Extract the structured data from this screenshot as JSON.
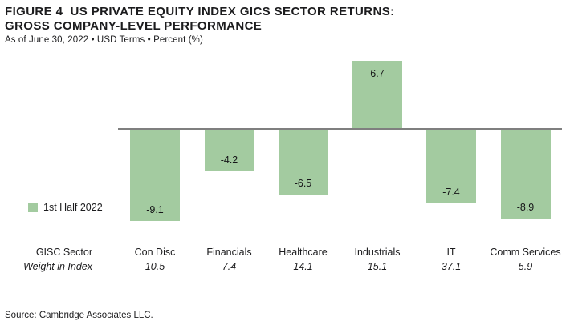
{
  "header": {
    "title_line1": "FIGURE 4  US PRIVATE EQUITY INDEX GICS SECTOR RETURNS:",
    "title_line2": "GROSS COMPANY-LEVEL PERFORMANCE",
    "subtitle": "As of June 30, 2022 • USD Terms • Percent (%)"
  },
  "chart_data": {
    "type": "bar",
    "title": "US Private Equity Index GICS Sector Returns: Gross Company-Level Performance",
    "categories": [
      "Con Disc",
      "Financials",
      "Healthcare",
      "Industrials",
      "IT",
      "Comm Services"
    ],
    "series": [
      {
        "name": "1st Half 2022",
        "values": [
          -9.1,
          -4.2,
          -6.5,
          6.7,
          -7.4,
          -8.9
        ]
      }
    ],
    "weight_in_index": [
      10.5,
      7.4,
      14.1,
      15.1,
      37.1,
      5.9
    ],
    "xlabel": "GISC Sector",
    "ylabel": "Percent (%)",
    "ylim": [
      -10,
      7.5
    ],
    "grid": false,
    "data_labels": true,
    "legend_position": "center-left",
    "bar_color": "#a3cba0"
  },
  "legend": {
    "label": "1st Half 2022"
  },
  "table": {
    "sector_row_label": "GISC Sector",
    "weight_row_label": "Weight in Index"
  },
  "footer": {
    "source": "Source: Cambridge Associates LLC."
  },
  "colors": {
    "bar": "#a3cba0",
    "axis": "#7f7f7f",
    "text": "#1c1c1e"
  }
}
